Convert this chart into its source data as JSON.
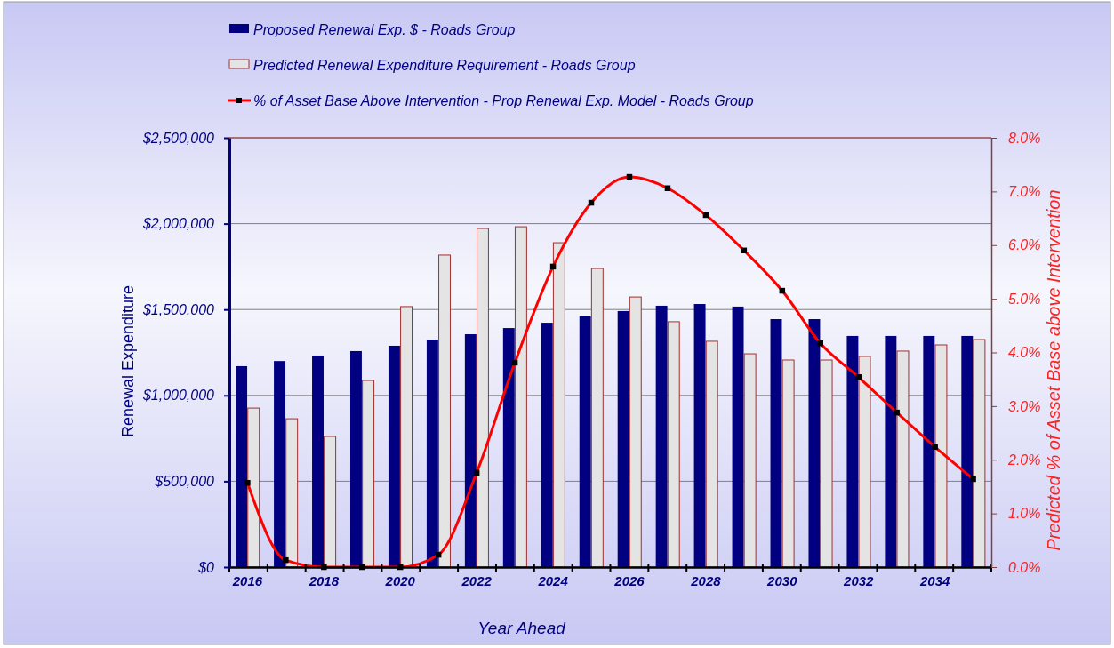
{
  "chart_data": {
    "type": "bar",
    "categories": [
      "2016",
      null,
      "2018",
      null,
      "2020",
      null,
      "2022",
      null,
      "2024",
      null,
      "2026",
      null,
      "2028",
      null,
      "2030",
      null,
      "2032",
      null,
      "2034",
      null
    ],
    "xlabel": "Year Ahead",
    "ylabel": "Renewal Expenditure",
    "y2label": "Predicted % of Asset Base above Intervention",
    "series": [
      {
        "name": "Proposed Renewal Exp. $ -  Roads Group",
        "color": "#000080",
        "values": [
          1170000,
          1200000,
          1232000,
          1258000,
          1289000,
          1325000,
          1356000,
          1392000,
          1423000,
          1460000,
          1491000,
          1522000,
          1532000,
          1517000,
          1444000,
          1444000,
          1346000,
          1346000,
          1346000,
          1346000
        ]
      },
      {
        "name": "Predicted Renewal Expenditure Requirement -  Roads Group",
        "color": "#e4e4e4",
        "values": [
          926000,
          864000,
          761000,
          1087000,
          1517000,
          1817000,
          1972000,
          1982000,
          1889000,
          1739000,
          1573000,
          1429000,
          1315000,
          1242000,
          1206000,
          1206000,
          1227000,
          1258000,
          1294000,
          1325000
        ]
      },
      {
        "name": "% of Asset Base Above Intervention - Prop Renewal Exp. Model -  Roads Group",
        "type": "line",
        "axis": "y2",
        "color": "#ff0000",
        "marker": "square",
        "values": [
          1.57,
          0.13,
          0.0,
          0.0,
          0.0,
          0.23,
          1.76,
          3.81,
          5.6,
          6.79,
          7.27,
          7.06,
          6.56,
          5.9,
          5.15,
          4.17,
          3.54,
          2.88,
          2.24,
          1.64
        ]
      }
    ],
    "ylim": [
      0,
      2500000
    ],
    "yticks": [
      {
        "value": 0,
        "label": "$0"
      },
      {
        "value": 500000,
        "label": "$500,000"
      },
      {
        "value": 1000000,
        "label": "$1,000,000"
      },
      {
        "value": 1500000,
        "label": "$1,500,000"
      },
      {
        "value": 2000000,
        "label": "$2,000,000"
      },
      {
        "value": 2500000,
        "label": "$2,500,000"
      }
    ],
    "y2lim": [
      0,
      8
    ],
    "y2ticks": [
      {
        "value": 0,
        "label": "0.0%"
      },
      {
        "value": 1,
        "label": "1.0%"
      },
      {
        "value": 2,
        "label": "2.0%"
      },
      {
        "value": 3,
        "label": "3.0%"
      },
      {
        "value": 4,
        "label": "4.0%"
      },
      {
        "value": 5,
        "label": "5.0%"
      },
      {
        "value": 6,
        "label": "6.0%"
      },
      {
        "value": 7,
        "label": "7.0%"
      },
      {
        "value": 8,
        "label": "8.0%"
      }
    ],
    "grid": "y",
    "legend": "top"
  }
}
